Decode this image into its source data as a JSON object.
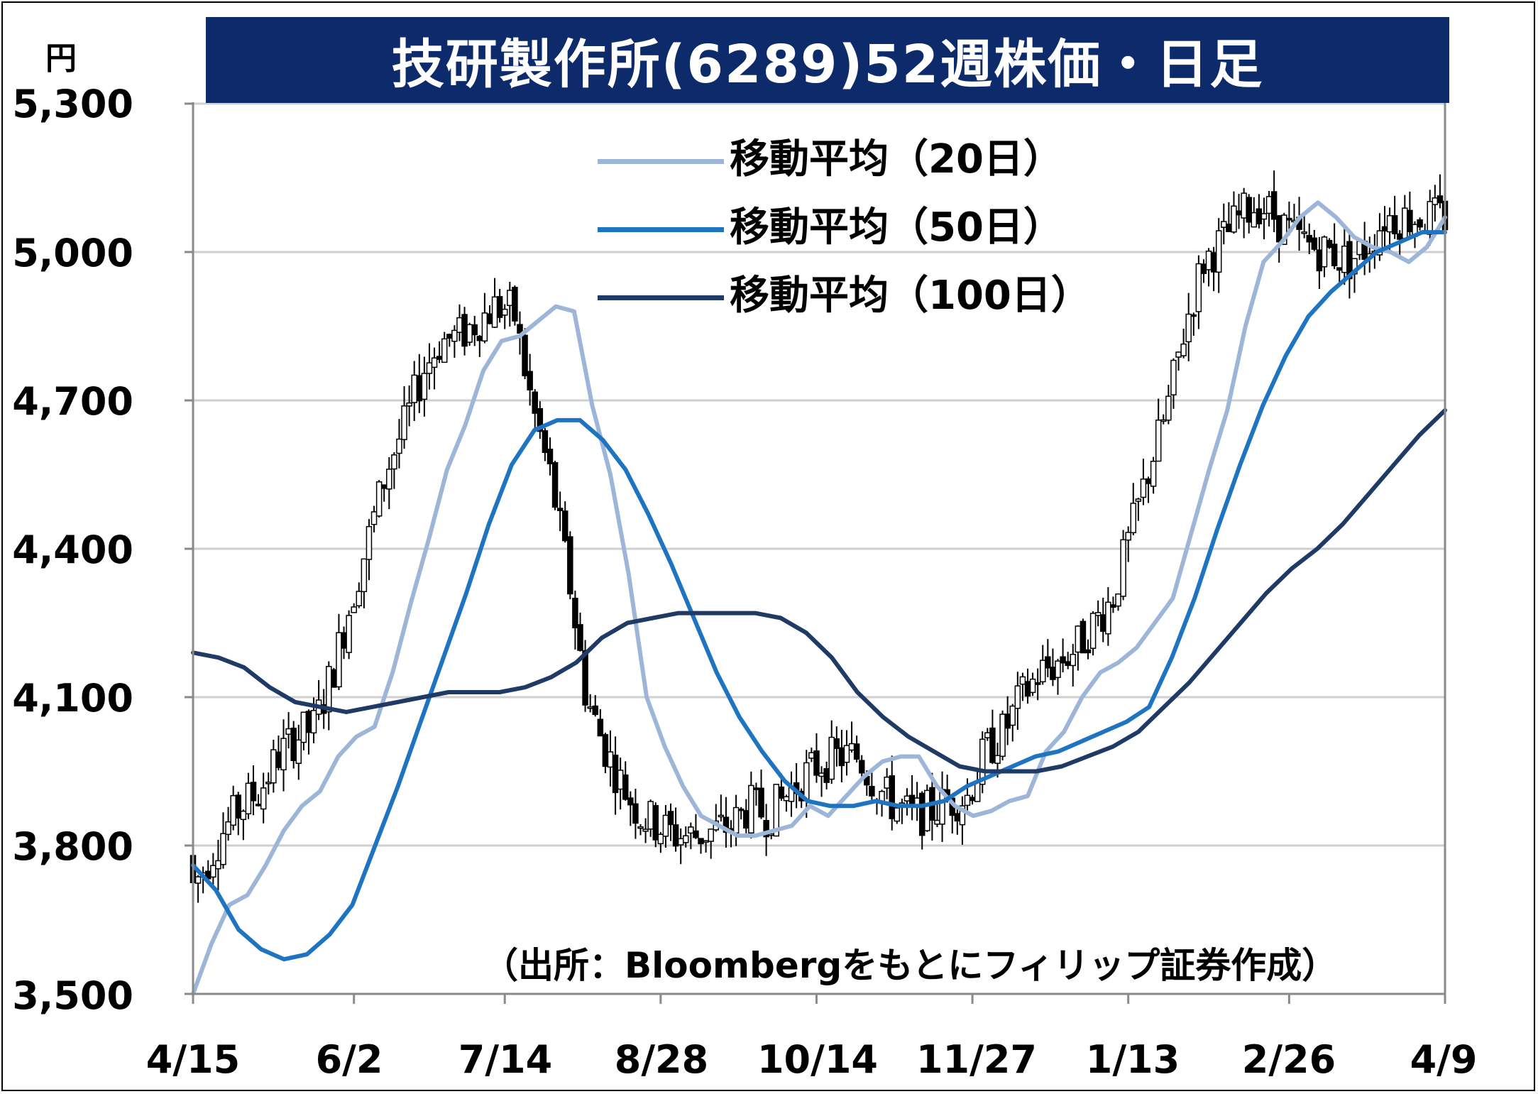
{
  "chart_data": {
    "type": "candlestick",
    "title": "技研製作所(6289)52週株価・日足",
    "unit_label": "円",
    "y_ticks": [
      "5,300",
      "5,000",
      "4,700",
      "4,400",
      "4,100",
      "3,800",
      "3,500"
    ],
    "y_tick_values": [
      5300,
      5000,
      4700,
      4400,
      4100,
      3800,
      3500
    ],
    "ylim": [
      3500,
      5300
    ],
    "x_ticks": [
      "4/15",
      "6/2",
      "7/14",
      "8/28",
      "10/14",
      "11/27",
      "1/13",
      "2/26",
      "4/9"
    ],
    "x_tick_index": [
      0,
      32,
      62,
      93,
      124,
      155,
      186,
      218,
      249
    ],
    "grid": true,
    "legend_position": "top-center",
    "source_note": "（出所：Bloombergをもとにフィリップ証券作成）",
    "series": [
      {
        "name": "移動平均（20日）",
        "color": "#9db6d8",
        "values": [
          3500,
          3600,
          3680,
          3700,
          3760,
          3830,
          3880,
          3910,
          3980,
          4020,
          4040,
          4150,
          4290,
          4420,
          4560,
          4650,
          4760,
          4820,
          4830,
          4860,
          4890,
          4880,
          4690,
          4550,
          4350,
          4100,
          4000,
          3920,
          3860,
          3840,
          3820,
          3820,
          3830,
          3840,
          3880,
          3860,
          3900,
          3940,
          3970,
          3980,
          3980,
          3920,
          3880,
          3860,
          3870,
          3890,
          3900,
          3990,
          4030,
          4100,
          4150,
          4170,
          4200,
          4250,
          4300,
          4430,
          4560,
          4680,
          4850,
          4980,
          5020,
          5070,
          5100,
          5070,
          5030,
          5010,
          5000,
          4980,
          5010,
          5070
        ]
      },
      {
        "name": "移動平均（50日）",
        "color": "#1f74c2",
        "values": [
          3760,
          3710,
          3630,
          3590,
          3570,
          3580,
          3620,
          3680,
          3800,
          3920,
          4050,
          4180,
          4310,
          4450,
          4570,
          4640,
          4660,
          4660,
          4620,
          4560,
          4470,
          4370,
          4260,
          4150,
          4060,
          3990,
          3930,
          3890,
          3880,
          3880,
          3890,
          3880,
          3880,
          3890,
          3920,
          3940,
          3960,
          3980,
          3990,
          4010,
          4030,
          4050,
          4080,
          4180,
          4300,
          4440,
          4570,
          4690,
          4790,
          4870,
          4920,
          4960,
          5000,
          5020,
          5040,
          5040
        ]
      },
      {
        "name": "移動平均（100日）",
        "color": "#1f3a64",
        "values": [
          4190,
          4180,
          4160,
          4120,
          4090,
          4080,
          4070,
          4080,
          4090,
          4100,
          4110,
          4110,
          4110,
          4120,
          4140,
          4170,
          4220,
          4250,
          4260,
          4270,
          4270,
          4270,
          4270,
          4260,
          4230,
          4180,
          4110,
          4060,
          4020,
          3990,
          3960,
          3950,
          3950,
          3950,
          3960,
          3980,
          4000,
          4030,
          4080,
          4130,
          4190,
          4250,
          4310,
          4360,
          4400,
          4450,
          4510,
          4570,
          4630,
          4680
        ]
      }
    ]
  }
}
